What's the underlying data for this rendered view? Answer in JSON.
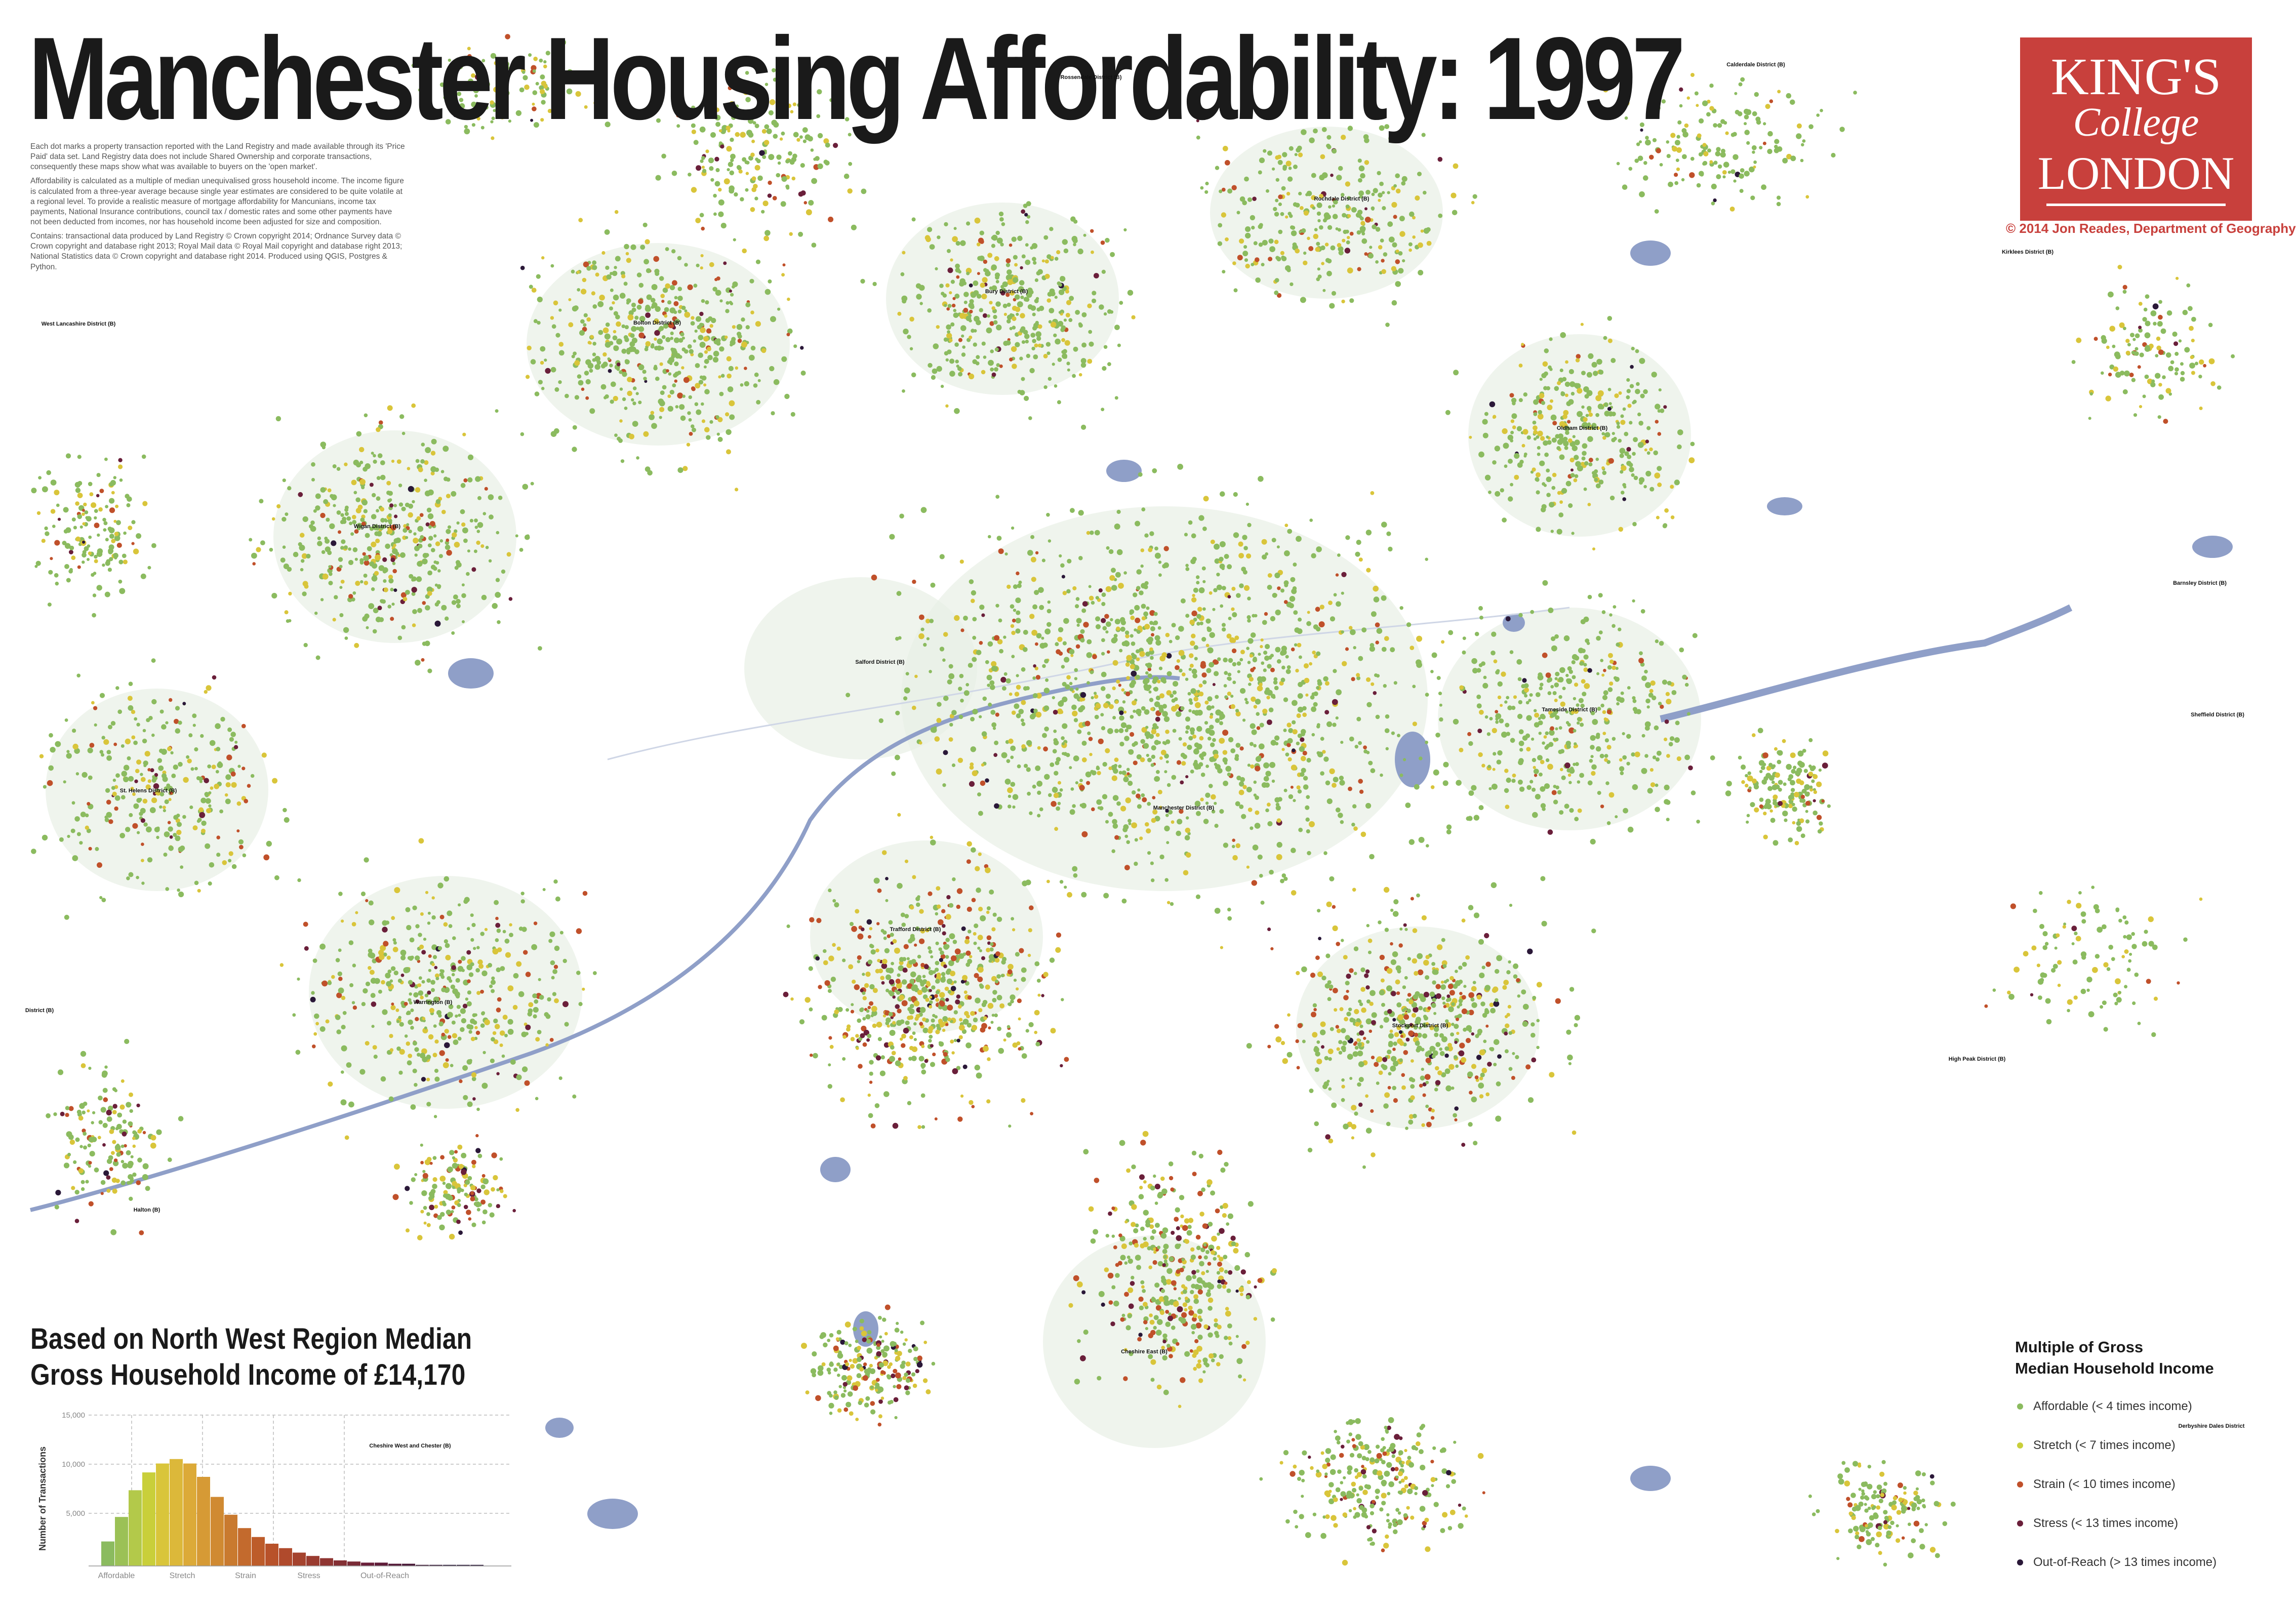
{
  "title": "Manchester Housing Affordability: 1997",
  "intro": {
    "p1": "Each dot marks a property transaction reported with the Land Registry and made available through its 'Price Paid' data set. Land Registry data does not include Shared Ownership and corporate transactions, consequently these maps show what was available to buyers on the 'open market'.",
    "p2": "Affordability is calculated as a multiple of median unequivalised gross household income. The income figure is calculated from a three-year average because single year estimates are considered to be quite volatile at a regional level. To provide a realistic measure of mortgage affordability for Mancunians, income tax payments, National Insurance contributions, council tax / domestic rates and some other payments have not been deducted from incomes, nor has household income been adjusted for size and composition.",
    "p3": "Contains: transactional data produced by Land Registry © Crown copyright 2014; Ordnance Survey data © Crown copyright and database right 2013; Royal Mail data © Royal Mail copyright and database right 2013; National Statistics data © Crown copyright and database right 2014. Produced using QGIS, Postgres & Python."
  },
  "logo": {
    "line1": "KING'S",
    "line2": "College",
    "line3": "LONDON"
  },
  "credit": "© 2014 Jon Reades, Department of Geography",
  "places": [
    "Rossendale District (B)",
    "Calderdale District (B)",
    "Rochdale District (B)",
    "Kirklees District (B)",
    "West Lancashire District (B)",
    "Bolton District (B)",
    "Bury District (B)",
    "Oldham District (B)",
    "Wigan District (B)",
    "Barnsley District (B)",
    "Salford District (B)",
    "Tameside District (B)",
    "Sheffield District (B)",
    "St. Helens District (B)",
    "Manchester District (B)",
    "Trafford District (B)",
    "District (B)",
    "Warrington (B)",
    "Stockport District (B)",
    "High Peak District (B)",
    "Halton (B)",
    "Cheshire East (B)",
    "Cheshire West and Chester (B)",
    "Derbyshire Dales District"
  ],
  "income_heading": {
    "line1": "Based on North West Region Median",
    "line2": "Gross Household Income of £14,170"
  },
  "histogram": {
    "ylabel": "Number of Transactions",
    "yticks": [
      "15,000",
      "10,000",
      "5,000"
    ],
    "categories": [
      "Affordable",
      "Stretch",
      "Strain",
      "Stress",
      "Out-of-Reach"
    ]
  },
  "legend": {
    "title_line1": "Multiple of Gross",
    "title_line2": "Median Household Income",
    "items": [
      {
        "label": "Affordable (< 4 times income)",
        "color": "#8bbb5f"
      },
      {
        "label": "Stretch (< 7 times income)",
        "color": "#c9cf3a"
      },
      {
        "label": "Strain (< 10 times income)",
        "color": "#c0502a"
      },
      {
        "label": "Stress (< 13 times income)",
        "color": "#6a1f3a"
      },
      {
        "label": "Out-of-Reach (> 13 times income)",
        "color": "#2a1838"
      }
    ]
  },
  "colors": {
    "water": "#8f9fc8",
    "urban": "#e8efe5",
    "affordable": "#8bbb5f",
    "stretch": "#d9c53a",
    "strain": "#c0502a",
    "stress": "#6a1f3a",
    "out_of_reach": "#2a1838"
  }
}
